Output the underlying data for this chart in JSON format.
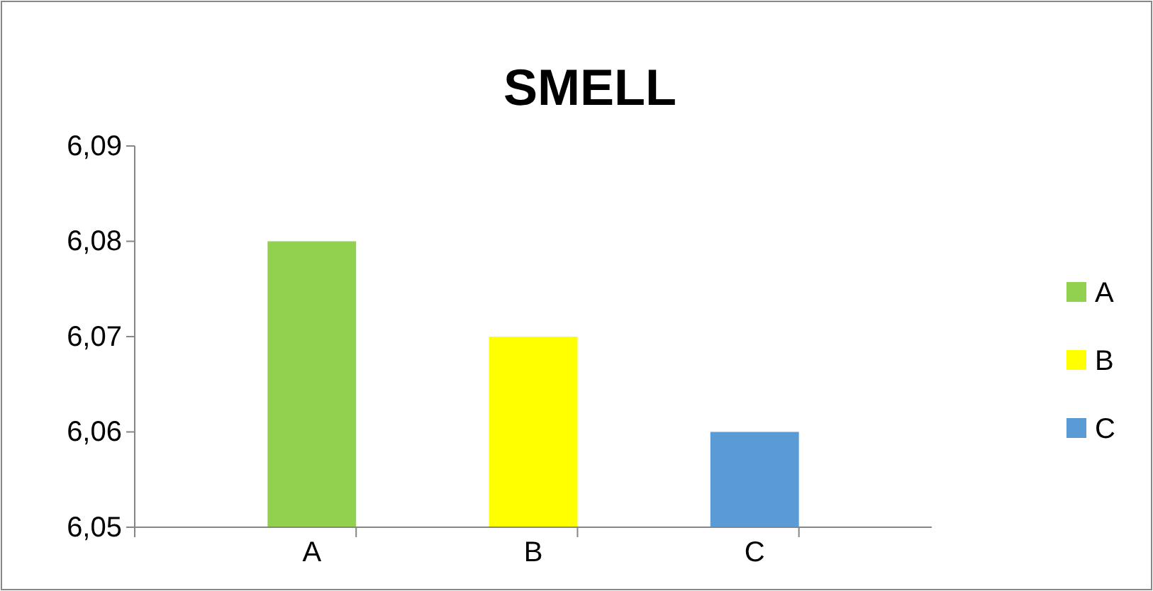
{
  "chart_data": {
    "type": "bar",
    "title": "SMELL",
    "categories": [
      "A",
      "B",
      "C"
    ],
    "series": [
      {
        "name": "A",
        "color": "#92d050",
        "values": [
          6.08,
          null,
          null
        ]
      },
      {
        "name": "B",
        "color": "#ffff00",
        "values": [
          null,
          6.07,
          null
        ]
      },
      {
        "name": "C",
        "color": "#5b9bd5",
        "values": [
          null,
          null,
          6.06
        ]
      }
    ],
    "ylim": [
      6.05,
      6.09
    ],
    "yticks": [
      {
        "value": 6.05,
        "label": "6,05"
      },
      {
        "value": 6.06,
        "label": "6,06"
      },
      {
        "value": 6.07,
        "label": "6,07"
      },
      {
        "value": 6.08,
        "label": "6,08"
      },
      {
        "value": 6.09,
        "label": "6,09"
      }
    ],
    "grid": false,
    "legend": "right"
  }
}
